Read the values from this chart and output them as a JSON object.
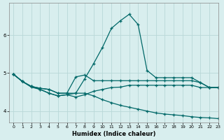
{
  "xlabel": "Humidex (Indice chaleur)",
  "bg_color": "#d8eeee",
  "grid_color": "#b8d8d8",
  "line_color": "#006868",
  "xlim": [
    -0.5,
    23
  ],
  "ylim": [
    3.7,
    6.85
  ],
  "yticks": [
    4,
    5,
    6
  ],
  "xticks": [
    0,
    1,
    2,
    3,
    4,
    5,
    6,
    7,
    8,
    9,
    10,
    11,
    12,
    13,
    14,
    15,
    16,
    17,
    18,
    19,
    20,
    21,
    22,
    23
  ],
  "line1_x": [
    0,
    1,
    2,
    3,
    4,
    5,
    6,
    7,
    8,
    9,
    10,
    11,
    12,
    13,
    14,
    15,
    16,
    17,
    18,
    19,
    20,
    21,
    22,
    23
  ],
  "line1_y": [
    4.97,
    4.78,
    4.65,
    4.6,
    4.57,
    4.47,
    4.47,
    4.9,
    4.95,
    4.8,
    4.8,
    4.8,
    4.8,
    4.8,
    4.8,
    4.8,
    4.8,
    4.8,
    4.8,
    4.8,
    4.8,
    4.75,
    4.62,
    4.62
  ],
  "line2_x": [
    0,
    1,
    2,
    3,
    4,
    5,
    6,
    7,
    8,
    9,
    10,
    11,
    12,
    13,
    14,
    15,
    16,
    17,
    18,
    19,
    20,
    21,
    22,
    23
  ],
  "line2_y": [
    4.97,
    4.78,
    4.65,
    4.57,
    4.47,
    4.4,
    4.43,
    4.47,
    4.85,
    5.25,
    5.68,
    6.18,
    6.38,
    6.55,
    6.28,
    5.07,
    4.88,
    4.88,
    4.88,
    4.88,
    4.88,
    4.75,
    4.62,
    4.62
  ],
  "line3_x": [
    0,
    1,
    2,
    3,
    4,
    5,
    6,
    7,
    8,
    9,
    10,
    11,
    12,
    13,
    14,
    15,
    16,
    17,
    18,
    19,
    20,
    21,
    22,
    23
  ],
  "line3_y": [
    4.97,
    4.78,
    4.63,
    4.57,
    4.47,
    4.4,
    4.43,
    4.37,
    4.43,
    4.52,
    4.57,
    4.62,
    4.63,
    4.68,
    4.68,
    4.68,
    4.68,
    4.68,
    4.68,
    4.68,
    4.68,
    4.62,
    4.62,
    4.62
  ],
  "line4_x": [
    0,
    1,
    2,
    3,
    4,
    5,
    6,
    7,
    8,
    9,
    10,
    11,
    12,
    13,
    14,
    15,
    16,
    17,
    18,
    19,
    20,
    21,
    22,
    23
  ],
  "line4_y": [
    4.97,
    4.78,
    4.65,
    4.6,
    4.57,
    4.47,
    4.47,
    4.47,
    4.47,
    4.4,
    4.3,
    4.22,
    4.15,
    4.1,
    4.05,
    4.0,
    3.95,
    3.92,
    3.9,
    3.88,
    3.85,
    3.83,
    3.82,
    3.8
  ]
}
